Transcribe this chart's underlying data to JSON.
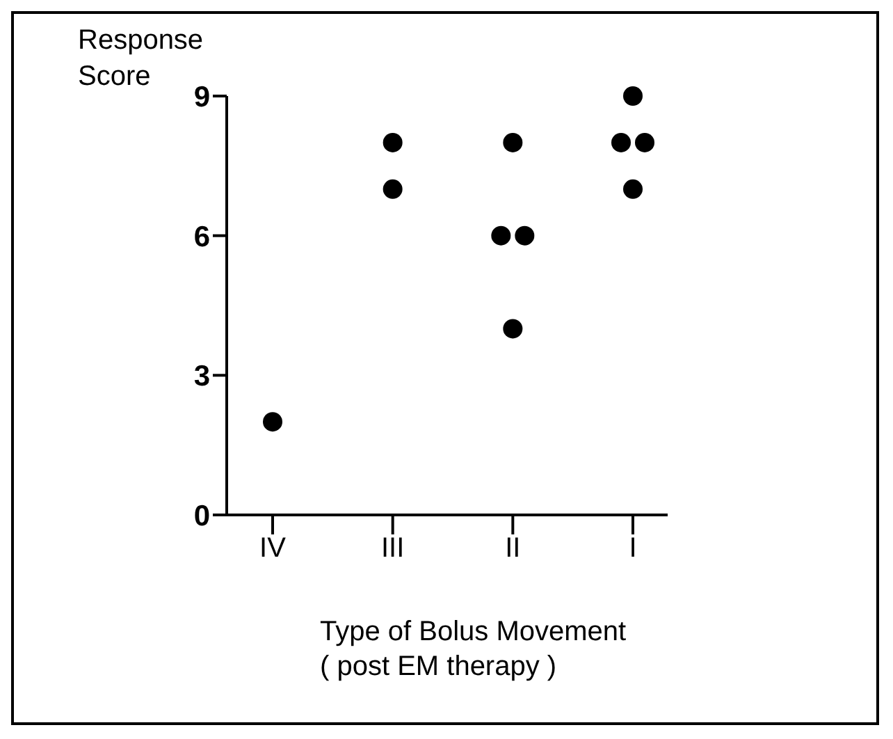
{
  "chart_data": {
    "type": "scatter",
    "ylabel": "Response\nScore",
    "xlabel": "Type of Bolus Movement\n( post EM therapy )",
    "categories": [
      "IV",
      "III",
      "II",
      "I"
    ],
    "series": [
      {
        "color": "#000000",
        "x": [
          "IV",
          "III",
          "III",
          "II",
          "II",
          "II",
          "II",
          "I",
          "I",
          "I",
          "I"
        ],
        "values": [
          2,
          8,
          7,
          8,
          6,
          6,
          4,
          9,
          8,
          8,
          7
        ]
      }
    ],
    "ylim": [
      0,
      9
    ],
    "yticks": [
      0,
      3,
      6,
      9
    ],
    "marker": "circle",
    "grid": false
  }
}
